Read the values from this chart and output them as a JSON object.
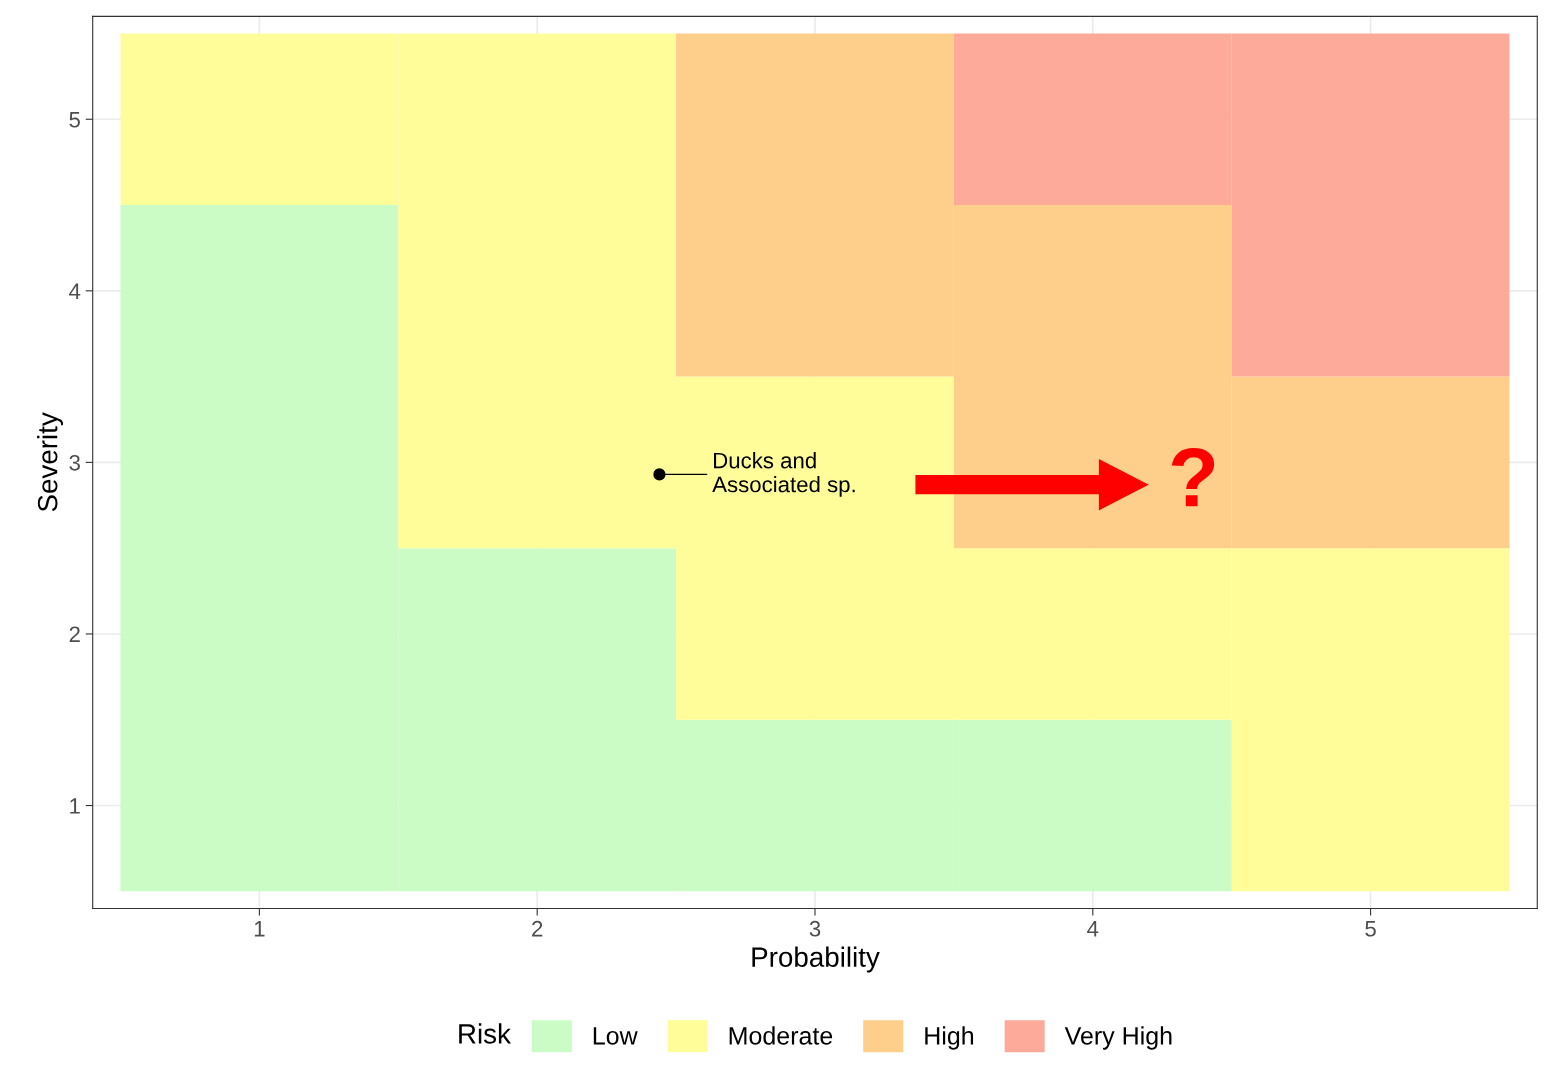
{
  "chart_data": {
    "type": "bar",
    "xlabel": "Probability",
    "ylabel": "Severity",
    "legend_title": "Risk",
    "legend": "bottom",
    "grid": true,
    "x": [
      1,
      2,
      3,
      4,
      5
    ],
    "xlim": [
      0.4,
      5.6
    ],
    "ylim": [
      0.4,
      5.6
    ],
    "xticks": [
      1,
      2,
      3,
      4,
      5
    ],
    "yticks": [
      1,
      2,
      3,
      4,
      5
    ],
    "series": [
      {
        "name": "Low",
        "color": "#ccfcc6",
        "values": [
          4,
          2,
          1,
          1,
          null
        ],
        "base": [
          0.5,
          0.5,
          0.5,
          0.5,
          null
        ]
      },
      {
        "name": "Moderate",
        "color": "#fffd99",
        "values": [
          1,
          3,
          2,
          1,
          2
        ],
        "base": [
          4.5,
          2.5,
          1.5,
          1.5,
          0.5
        ]
      },
      {
        "name": "High",
        "color": "#fece8b",
        "values": [
          null,
          null,
          2,
          2,
          1
        ],
        "base": [
          null,
          null,
          3.5,
          2.5,
          2.5
        ]
      },
      {
        "name": "Very High",
        "color": "#feaa9a",
        "values": [
          null,
          null,
          null,
          1,
          2
        ],
        "base": [
          null,
          null,
          null,
          4.5,
          3.5
        ]
      },
      {
        "type": "scatter",
        "x": [
          2.44
        ],
        "values": [
          2.93
        ],
        "color": "#000000"
      }
    ],
    "annotations": [
      {
        "text": "Ducks and\nAssociated sp.",
        "x": 2.44,
        "y": 2.93
      },
      "?"
    ]
  }
}
